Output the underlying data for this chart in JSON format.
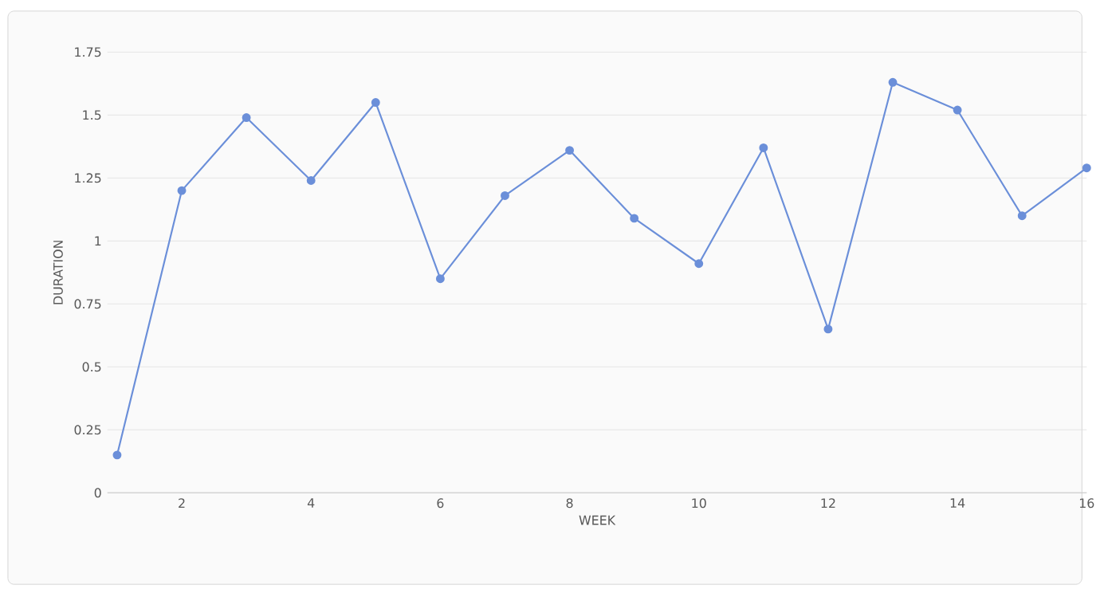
{
  "chart_data": {
    "type": "line",
    "xlabel": "WEEK",
    "ylabel": "DURATION",
    "x": [
      1,
      2,
      3,
      4,
      5,
      6,
      7,
      8,
      9,
      10,
      11,
      12,
      13,
      14,
      15,
      16
    ],
    "series": [
      {
        "color": "#6b8fd9",
        "values": [
          0.15,
          1.2,
          1.49,
          1.24,
          1.55,
          0.85,
          1.18,
          1.36,
          1.09,
          0.91,
          1.37,
          0.65,
          1.63,
          1.52,
          1.1,
          1.29
        ]
      }
    ],
    "xlim": [
      0.85,
      16
    ],
    "ylim": [
      0,
      1.75
    ],
    "xticks": [
      2,
      4,
      6,
      8,
      10,
      12,
      14,
      16
    ],
    "yticks": [
      0,
      0.25,
      0.5,
      0.75,
      1,
      1.25,
      1.5,
      1.75
    ],
    "grid": "y",
    "marker": "circle",
    "line_style": "solid"
  }
}
